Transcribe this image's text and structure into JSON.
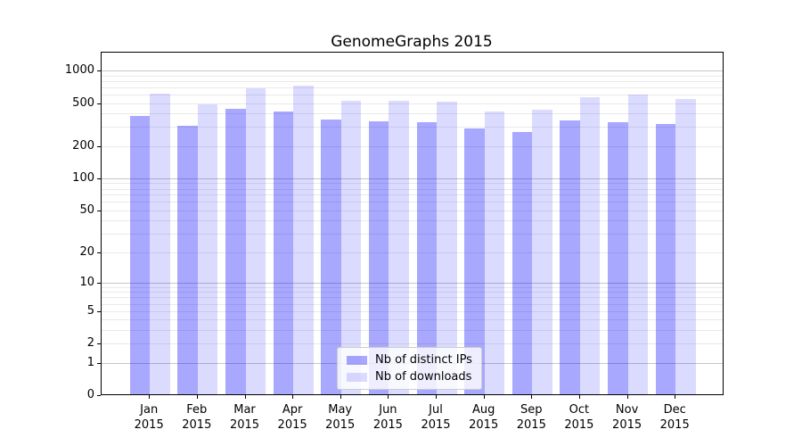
{
  "chart_data": {
    "type": "bar",
    "title": "GenomeGraphs 2015",
    "categories": [
      "Jan",
      "Feb",
      "Mar",
      "Apr",
      "May",
      "Jun",
      "Jul",
      "Aug",
      "Sep",
      "Oct",
      "Nov",
      "Dec"
    ],
    "x_year": "2015",
    "series": [
      {
        "name": "Nb of distinct IPs",
        "color": "#0000ff",
        "opacity": 0.34,
        "values": [
          380,
          305,
          445,
          415,
          350,
          340,
          335,
          293,
          272,
          342,
          335,
          322
        ]
      },
      {
        "name": "Nb of downloads",
        "color": "#0000ff",
        "opacity": 0.14,
        "values": [
          610,
          490,
          690,
          720,
          520,
          520,
          510,
          415,
          430,
          570,
          595,
          550
        ]
      }
    ],
    "y_ticks": [
      0,
      1,
      2,
      5,
      10,
      20,
      50,
      100,
      200,
      500,
      1000
    ],
    "y_scale": "log1p",
    "ylim": [
      0,
      1490
    ],
    "grid": true,
    "legend_position": "lower center"
  },
  "colors": {
    "bar_distinct_ips_rendered": "#a9a9f6",
    "bar_downloads_rendered": "#dcdcf9",
    "grid_major": "#c6c6c6",
    "grid_minor": "#e9e9e9",
    "axis": "#000000",
    "legend_border": "#cccccc",
    "legend_bg": "#ffffff"
  }
}
